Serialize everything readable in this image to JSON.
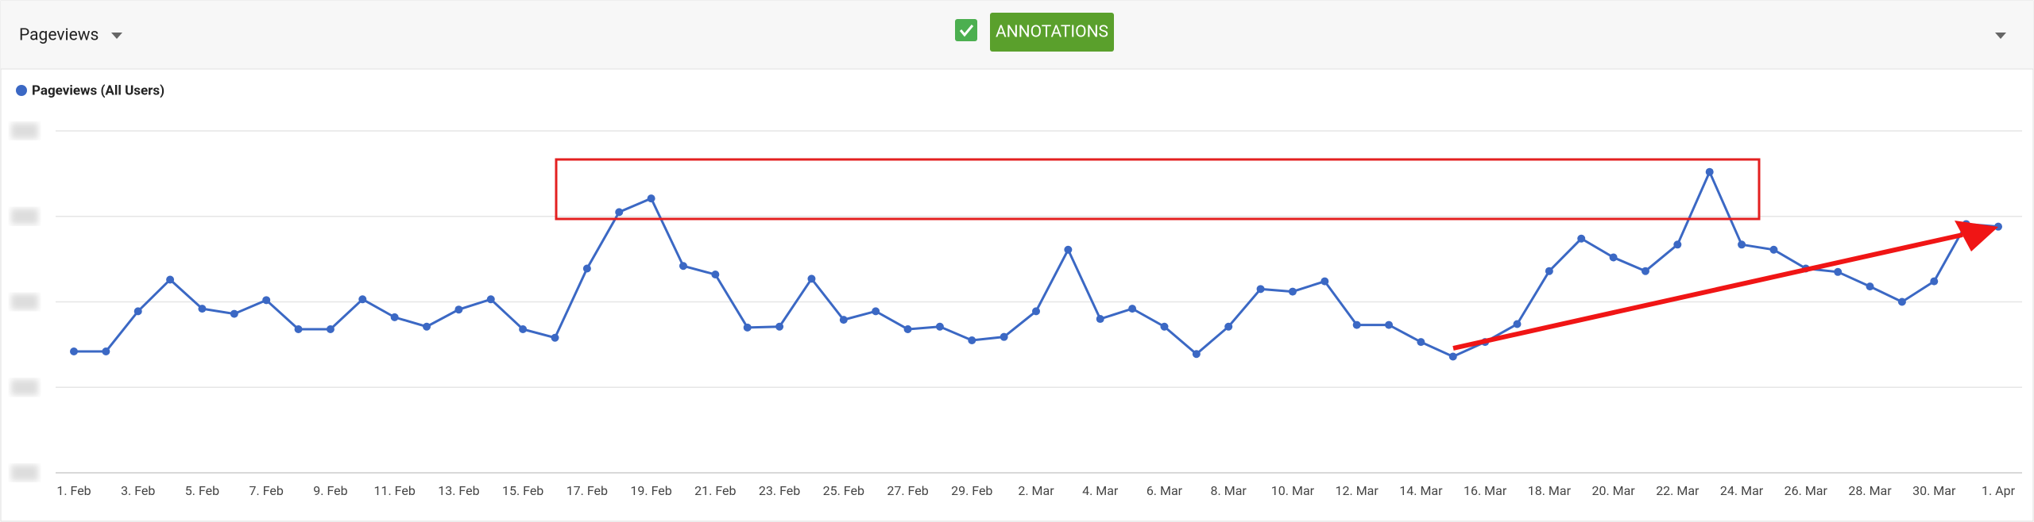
{
  "header": {
    "metric": "Pageviews",
    "button": "ANNOTATIONS"
  },
  "chart_data": {
    "type": "line",
    "categories": [
      "1. Feb",
      null,
      "3. Feb",
      null,
      "5. Feb",
      null,
      "7. Feb",
      null,
      "9. Feb",
      null,
      "11. Feb",
      null,
      "13. Feb",
      null,
      "15. Feb",
      null,
      "17. Feb",
      null,
      "19. Feb",
      null,
      "21. Feb",
      null,
      "23. Feb",
      null,
      "25. Feb",
      null,
      "27. Feb",
      null,
      "29. Feb",
      null,
      "2. Mar",
      null,
      "4. Mar",
      null,
      "6. Mar",
      null,
      "8. Mar",
      null,
      "10. Mar",
      null,
      "12. Mar",
      null,
      "14. Mar",
      null,
      "16. Mar",
      null,
      "18. Mar",
      null,
      "20. Mar",
      null,
      "22. Mar",
      null,
      "24. Mar",
      null,
      "26. Mar",
      null,
      "28. Mar",
      null,
      "30. Mar",
      null,
      "1. Apr"
    ],
    "series": [
      {
        "name": "Pageviews (All Users)",
        "color": "#3b68c4",
        "values": [
          1.42,
          1.42,
          1.89,
          2.26,
          1.92,
          1.86,
          2.02,
          1.68,
          1.68,
          2.03,
          1.82,
          1.71,
          1.91,
          2.03,
          1.68,
          1.58,
          2.39,
          3.05,
          3.21,
          2.42,
          2.32,
          1.7,
          1.71,
          2.27,
          1.79,
          1.89,
          1.68,
          1.71,
          1.55,
          1.59,
          1.89,
          2.61,
          1.8,
          1.92,
          1.71,
          1.39,
          1.71,
          2.15,
          2.12,
          2.24,
          1.73,
          1.73,
          1.53,
          1.36,
          1.53,
          1.74,
          2.36,
          2.74,
          2.52,
          2.36,
          2.67,
          3.52,
          2.67,
          2.61,
          2.39,
          2.35,
          2.18,
          2.0,
          2.24,
          2.91,
          2.88
        ]
      }
    ],
    "ylim": [
      0,
      4
    ],
    "yticks": [
      0,
      1,
      2,
      3,
      4
    ],
    "grid": true
  }
}
